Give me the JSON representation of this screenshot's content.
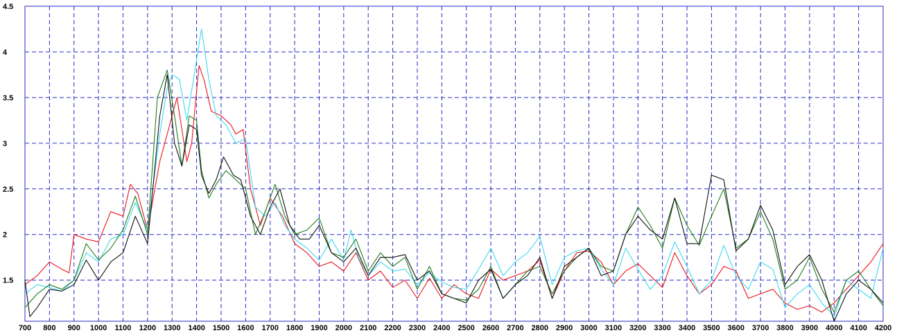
{
  "chart_data": {
    "type": "line",
    "title": "",
    "xlabel": "",
    "ylabel": "",
    "xlim": [
      700,
      4200
    ],
    "ylim": [
      1.05,
      4.5
    ],
    "x_ticks": [
      700,
      800,
      900,
      1000,
      1100,
      1200,
      1300,
      1400,
      1500,
      1600,
      1700,
      1800,
      1900,
      2000,
      2100,
      2200,
      2300,
      2400,
      2500,
      2600,
      2700,
      2800,
      2900,
      3000,
      3100,
      3200,
      3300,
      3400,
      3500,
      3600,
      3700,
      3800,
      3900,
      4000,
      4100,
      4200
    ],
    "y_ticks": [
      1.5,
      2,
      2.5,
      3,
      3.5,
      4,
      4.5
    ],
    "y_tick_labels": [
      "1.5",
      "2",
      "2.5",
      "3",
      "3.5",
      "4",
      "4.5"
    ],
    "grid": true,
    "legend": "none",
    "colors": {
      "grid": "#2a2ac8",
      "axis_frame": "#2a2ac8",
      "red": "#e8141c",
      "cyan": "#3fd8f0",
      "green": "#1e7a1e",
      "black": "#101010"
    },
    "series": [
      {
        "color": "#e8141c",
        "x": [
          700,
          750,
          800,
          850,
          880,
          900,
          950,
          1000,
          1050,
          1100,
          1130,
          1160,
          1200,
          1250,
          1280,
          1320,
          1360,
          1380,
          1410,
          1430,
          1460,
          1500,
          1540,
          1560,
          1590,
          1620,
          1660,
          1700,
          1750,
          1800,
          1850,
          1900,
          1950,
          2000,
          2050,
          2100,
          2150,
          2200,
          2250,
          2300,
          2350,
          2400,
          2450,
          2500,
          2550,
          2600,
          2650,
          2700,
          2750,
          2800,
          2850,
          2900,
          2950,
          3000,
          3050,
          3100,
          3150,
          3200,
          3250,
          3300,
          3350,
          3400,
          3450,
          3500,
          3550,
          3600,
          3650,
          3700,
          3750,
          3800,
          3850,
          3900,
          3950,
          4000,
          4050,
          4100,
          4150,
          4200
        ],
        "y": [
          1.45,
          1.55,
          1.7,
          1.62,
          1.58,
          2.0,
          1.95,
          1.92,
          2.25,
          2.2,
          2.55,
          2.45,
          2.05,
          2.8,
          3.1,
          3.5,
          2.8,
          3.0,
          3.85,
          3.7,
          3.35,
          3.3,
          3.2,
          3.1,
          3.15,
          2.5,
          2.1,
          2.4,
          2.2,
          1.9,
          1.8,
          1.65,
          1.7,
          1.6,
          1.8,
          1.5,
          1.6,
          1.42,
          1.5,
          1.3,
          1.52,
          1.3,
          1.45,
          1.35,
          1.3,
          1.62,
          1.5,
          1.55,
          1.6,
          1.72,
          1.3,
          1.6,
          1.8,
          1.82,
          1.7,
          1.45,
          1.6,
          1.68,
          1.55,
          1.42,
          1.8,
          1.55,
          1.35,
          1.45,
          1.65,
          1.6,
          1.3,
          1.35,
          1.4,
          1.25,
          1.18,
          1.22,
          1.15,
          1.25,
          1.4,
          1.55,
          1.7,
          1.9
        ]
      },
      {
        "color": "#3fd8f0",
        "x": [
          700,
          750,
          800,
          850,
          900,
          950,
          1000,
          1050,
          1100,
          1150,
          1200,
          1250,
          1280,
          1300,
          1330,
          1360,
          1390,
          1420,
          1450,
          1480,
          1520,
          1560,
          1600,
          1640,
          1680,
          1720,
          1760,
          1800,
          1850,
          1900,
          1950,
          2000,
          2030,
          2060,
          2100,
          2150,
          2200,
          2250,
          2300,
          2350,
          2400,
          2450,
          2500,
          2550,
          2600,
          2650,
          2700,
          2750,
          2800,
          2850,
          2900,
          2950,
          3000,
          3050,
          3100,
          3150,
          3200,
          3250,
          3300,
          3350,
          3400,
          3450,
          3500,
          3550,
          3600,
          3650,
          3700,
          3750,
          3800,
          3850,
          3900,
          3950,
          4000,
          4050,
          4100,
          4150,
          4200
        ],
        "y": [
          1.35,
          1.45,
          1.42,
          1.38,
          1.5,
          1.8,
          1.7,
          1.95,
          2.0,
          2.35,
          2.05,
          3.1,
          3.6,
          3.75,
          3.7,
          3.25,
          3.75,
          4.25,
          3.7,
          3.3,
          3.2,
          3.0,
          3.05,
          2.3,
          2.2,
          2.35,
          2.1,
          1.95,
          1.85,
          1.72,
          1.95,
          1.72,
          2.05,
          1.75,
          1.55,
          1.7,
          1.6,
          1.62,
          1.45,
          1.58,
          1.48,
          1.42,
          1.4,
          1.62,
          1.85,
          1.55,
          1.7,
          1.8,
          1.98,
          1.45,
          1.75,
          1.82,
          1.85,
          1.62,
          1.45,
          1.85,
          1.62,
          1.4,
          1.55,
          1.92,
          1.65,
          1.35,
          1.5,
          1.88,
          1.55,
          1.4,
          1.7,
          1.62,
          1.2,
          1.35,
          1.45,
          1.25,
          1.1,
          1.5,
          1.4,
          1.3,
          1.85
        ]
      },
      {
        "color": "#1e7a1e",
        "x": [
          700,
          750,
          800,
          850,
          900,
          950,
          1000,
          1050,
          1100,
          1150,
          1200,
          1240,
          1280,
          1310,
          1340,
          1370,
          1400,
          1420,
          1450,
          1480,
          1520,
          1560,
          1600,
          1640,
          1680,
          1720,
          1760,
          1800,
          1850,
          1900,
          1950,
          2000,
          2050,
          2100,
          2150,
          2200,
          2250,
          2300,
          2350,
          2400,
          2450,
          2500,
          2550,
          2600,
          2650,
          2700,
          2750,
          2800,
          2850,
          2900,
          2950,
          3000,
          3050,
          3100,
          3150,
          3200,
          3250,
          3300,
          3350,
          3400,
          3450,
          3500,
          3550,
          3600,
          3650,
          3700,
          3750,
          3800,
          3850,
          3900,
          3950,
          4000,
          4050,
          4100,
          4150,
          4200
        ],
        "y": [
          1.2,
          1.35,
          1.45,
          1.4,
          1.5,
          1.9,
          1.72,
          1.85,
          2.05,
          2.42,
          2.0,
          3.5,
          3.8,
          3.3,
          2.75,
          3.3,
          3.25,
          2.7,
          2.4,
          2.55,
          2.7,
          2.6,
          2.5,
          2.0,
          2.25,
          2.55,
          2.2,
          2.0,
          2.05,
          2.18,
          1.8,
          1.75,
          1.95,
          1.6,
          1.8,
          1.65,
          1.75,
          1.4,
          1.65,
          1.35,
          1.3,
          1.28,
          1.4,
          1.65,
          1.3,
          1.45,
          1.6,
          1.65,
          1.35,
          1.6,
          1.75,
          1.85,
          1.65,
          1.6,
          2.0,
          2.3,
          2.1,
          1.85,
          2.4,
          2.1,
          1.88,
          2.2,
          2.5,
          1.85,
          1.95,
          2.25,
          1.95,
          1.4,
          1.5,
          1.75,
          1.4,
          1.15,
          1.5,
          1.6,
          1.4,
          1.22
        ]
      },
      {
        "color": "#101010",
        "x": [
          700,
          720,
          750,
          800,
          850,
          900,
          950,
          1000,
          1050,
          1100,
          1150,
          1200,
          1250,
          1280,
          1310,
          1340,
          1370,
          1400,
          1420,
          1450,
          1480,
          1510,
          1550,
          1580,
          1620,
          1660,
          1700,
          1740,
          1780,
          1820,
          1860,
          1900,
          1950,
          2000,
          2050,
          2100,
          2150,
          2200,
          2250,
          2300,
          2350,
          2400,
          2450,
          2500,
          2550,
          2600,
          2650,
          2700,
          2750,
          2800,
          2850,
          2900,
          2950,
          3000,
          3050,
          3100,
          3150,
          3200,
          3250,
          3300,
          3350,
          3400,
          3450,
          3500,
          3550,
          3600,
          3650,
          3700,
          3750,
          3800,
          3850,
          3900,
          3950,
          4000,
          4050,
          4100,
          4150,
          4200
        ],
        "y": [
          1.5,
          1.1,
          1.2,
          1.4,
          1.38,
          1.45,
          1.72,
          1.5,
          1.7,
          1.8,
          2.2,
          1.9,
          3.3,
          3.75,
          3.0,
          2.75,
          3.2,
          3.15,
          2.65,
          2.45,
          2.6,
          2.85,
          2.65,
          2.6,
          2.2,
          2.0,
          2.3,
          2.5,
          2.1,
          1.95,
          1.95,
          2.1,
          1.8,
          1.7,
          1.85,
          1.55,
          1.75,
          1.75,
          1.78,
          1.5,
          1.6,
          1.35,
          1.3,
          1.25,
          1.5,
          1.62,
          1.3,
          1.45,
          1.55,
          1.75,
          1.3,
          1.65,
          1.75,
          1.85,
          1.55,
          1.6,
          2.0,
          2.2,
          2.05,
          1.95,
          2.4,
          1.9,
          1.9,
          2.65,
          2.6,
          1.82,
          1.95,
          2.32,
          2.05,
          1.45,
          1.65,
          1.78,
          1.5,
          1.05,
          1.35,
          1.5,
          1.4,
          1.25
        ]
      }
    ]
  }
}
